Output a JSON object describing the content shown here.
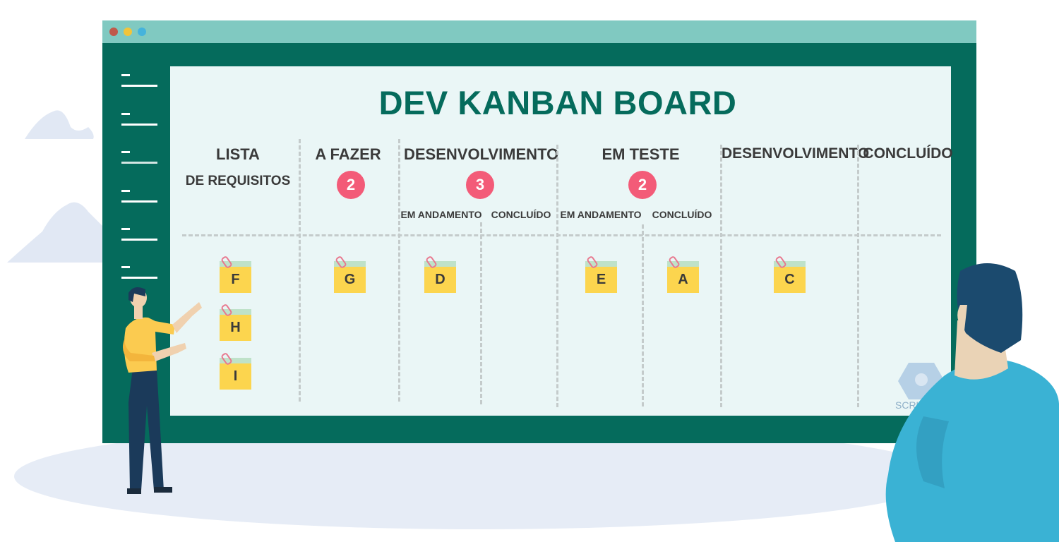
{
  "board": {
    "title": "DEV KANBAN BOARD",
    "columns": [
      {
        "label": "LISTA",
        "sublabel": "DE REQUISITOS"
      },
      {
        "label": "A FAZER",
        "limit": "2"
      },
      {
        "label": "DESENVOLVIMENTO",
        "limit": "3",
        "subcolumns": [
          "EM ANDAMENTO",
          "CONCLUÍDO"
        ]
      },
      {
        "label": "EM TESTE",
        "limit": "2",
        "subcolumns": [
          "EM ANDAMENTO",
          "CONCLUÍDO"
        ]
      },
      {
        "label": "DESENVOLVIMENTO"
      },
      {
        "label": "CONCLUÍDO"
      }
    ],
    "cards": [
      "F",
      "H",
      "I",
      "G",
      "D",
      "E",
      "A",
      "C"
    ]
  },
  "logo": {
    "text": "SCRUM.as"
  },
  "colors": {
    "window_frame": "#056b5c",
    "title_bar": "#80c9c1",
    "board_background": "#eaf6f6",
    "limit_badge": "#f35b78",
    "sticky_note": "#fcd54e",
    "sticky_note_strip": "#bfe2c9"
  },
  "icons": [
    "paperclip-icon",
    "scrum-logo-icon",
    "presenter-person-illustration",
    "viewer-person-illustration",
    "cloud-illustration"
  ]
}
